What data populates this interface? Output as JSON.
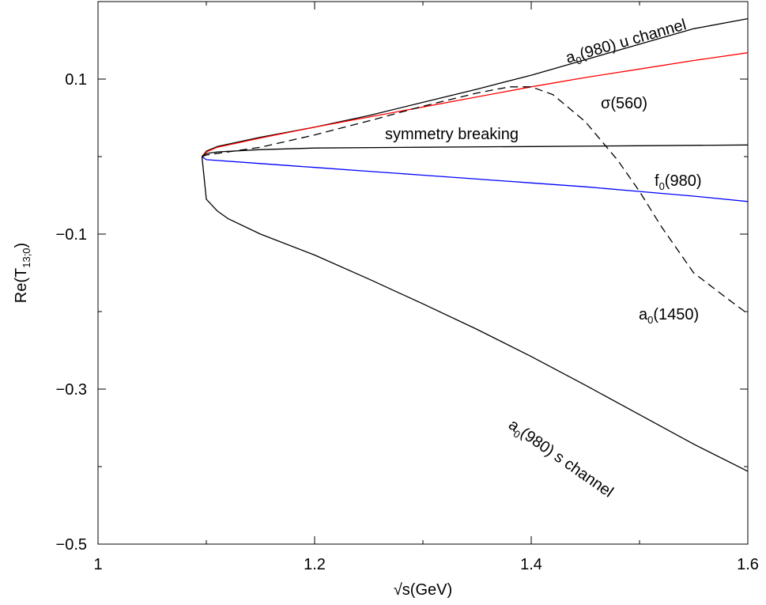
{
  "chart_data": {
    "type": "line",
    "title": "",
    "xlabel": "√s(GeV)",
    "ylabel": {
      "main": "Re(T",
      "sub": "13;0",
      "close": ")"
    },
    "xlim": [
      1.0,
      1.6
    ],
    "ylim": [
      -0.5,
      0.2
    ],
    "xticks": [
      {
        "value": 1.0,
        "label": "1"
      },
      {
        "value": 1.2,
        "label": "1.2"
      },
      {
        "value": 1.4,
        "label": "1.4"
      },
      {
        "value": 1.6,
        "label": "1.6"
      }
    ],
    "yticks": [
      {
        "value": 0.1,
        "label": "0.1"
      },
      {
        "value": -0.1,
        "label": "−0.1"
      },
      {
        "value": -0.3,
        "label": "−0.3"
      },
      {
        "value": -0.5,
        "label": "−0.5"
      }
    ],
    "grid": false,
    "legend": "none",
    "series": [
      {
        "label_parts": [
          [
            "a",
            ""
          ],
          [
            "0",
            "sub"
          ],
          [
            "(980) u channel",
            ""
          ]
        ],
        "color": "#000000",
        "dash": "none",
        "x": [
          1.096,
          1.1,
          1.11,
          1.15,
          1.2,
          1.25,
          1.3,
          1.35,
          1.4,
          1.45,
          1.5,
          1.55,
          1.6
        ],
        "y": [
          0.0,
          0.007,
          0.013,
          0.025,
          0.038,
          0.053,
          0.07,
          0.087,
          0.105,
          0.125,
          0.145,
          0.165,
          0.178
        ]
      },
      {
        "label_parts": [
          [
            "σ(560)",
            ""
          ]
        ],
        "color": "#ff0000",
        "dash": "none",
        "x": [
          1.096,
          1.1,
          1.11,
          1.15,
          1.2,
          1.25,
          1.3,
          1.35,
          1.4,
          1.45,
          1.5,
          1.55,
          1.6
        ],
        "y": [
          0.0,
          0.006,
          0.012,
          0.024,
          0.038,
          0.051,
          0.064,
          0.077,
          0.09,
          0.102,
          0.113,
          0.124,
          0.134
        ]
      },
      {
        "label_parts": [
          [
            "symmetry breaking",
            ""
          ]
        ],
        "color": "#000000",
        "dash": "none",
        "x": [
          1.096,
          1.1,
          1.11,
          1.15,
          1.2,
          1.3,
          1.4,
          1.5,
          1.6
        ],
        "y": [
          0.0,
          0.004,
          0.006,
          0.009,
          0.011,
          0.012,
          0.013,
          0.014,
          0.015
        ]
      },
      {
        "label_parts": [
          [
            "f",
            ""
          ],
          [
            "0",
            "sub"
          ],
          [
            "(980)",
            ""
          ]
        ],
        "color": "#0000ff",
        "dash": "none",
        "x": [
          1.096,
          1.1,
          1.15,
          1.2,
          1.25,
          1.3,
          1.35,
          1.4,
          1.45,
          1.5,
          1.55,
          1.6
        ],
        "y": [
          0.0,
          -0.004,
          -0.009,
          -0.014,
          -0.019,
          -0.024,
          -0.029,
          -0.034,
          -0.039,
          -0.045,
          -0.051,
          -0.058
        ]
      },
      {
        "label_parts": [
          [
            "a",
            ""
          ],
          [
            "0",
            "sub"
          ],
          [
            "(1450)",
            ""
          ]
        ],
        "color": "#000000",
        "dash": "10,6",
        "x": [
          1.096,
          1.1,
          1.15,
          1.2,
          1.25,
          1.3,
          1.35,
          1.38,
          1.4,
          1.42,
          1.45,
          1.48,
          1.5,
          1.52,
          1.55,
          1.58,
          1.6
        ],
        "y": [
          0.0,
          0.002,
          0.012,
          0.028,
          0.046,
          0.065,
          0.082,
          0.09,
          0.09,
          0.08,
          0.045,
          -0.005,
          -0.045,
          -0.09,
          -0.15,
          -0.182,
          -0.203
        ]
      },
      {
        "label_parts": [
          [
            "a",
            ""
          ],
          [
            "0",
            "sub"
          ],
          [
            "(980) s channel",
            ""
          ]
        ],
        "color": "#000000",
        "dash": "none",
        "x": [
          1.096,
          1.1,
          1.11,
          1.12,
          1.15,
          1.2,
          1.25,
          1.3,
          1.35,
          1.4,
          1.45,
          1.5,
          1.55,
          1.6
        ],
        "y": [
          0.0,
          -0.055,
          -0.07,
          -0.08,
          -0.1,
          -0.127,
          -0.158,
          -0.19,
          -0.223,
          -0.258,
          -0.295,
          -0.333,
          -0.371,
          -0.406
        ]
      }
    ]
  }
}
